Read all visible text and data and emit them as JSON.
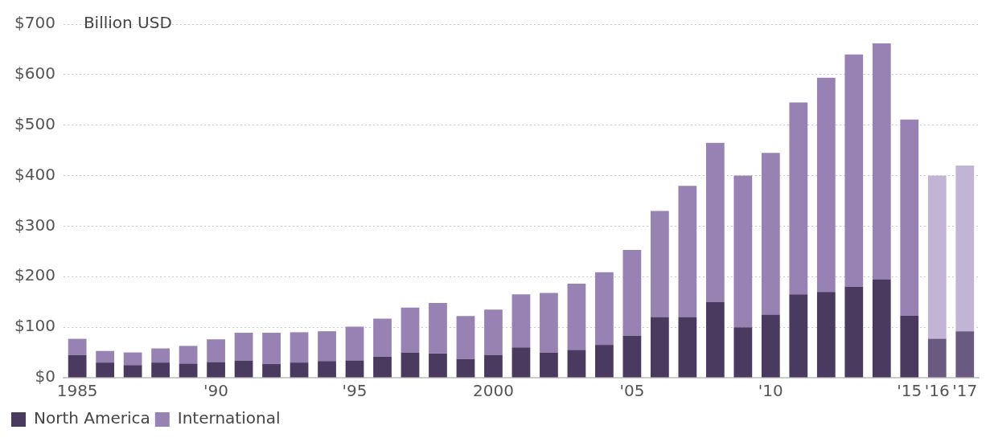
{
  "chart_data": {
    "type": "bar",
    "stacked": true,
    "ylabel": "Billion USD",
    "categories": [
      "1985",
      null,
      null,
      null,
      null,
      "'90",
      null,
      null,
      null,
      null,
      "'95",
      null,
      null,
      null,
      null,
      "2000",
      null,
      null,
      null,
      null,
      "'05",
      null,
      null,
      null,
      null,
      "'10",
      null,
      null,
      null,
      null,
      "'15",
      "'16",
      "'17"
    ],
    "series": [
      {
        "name": "North America",
        "color": "#4a3a60",
        "colors": [
          "#4a3a60",
          "#4a3a60",
          "#4a3a60",
          "#4a3a60",
          "#4a3a60",
          "#4a3a60",
          "#4a3a60",
          "#4a3a60",
          "#4a3a60",
          "#4a3a60",
          "#4a3a60",
          "#4a3a60",
          "#4a3a60",
          "#4a3a60",
          "#4a3a60",
          "#4a3a60",
          "#4a3a60",
          "#4a3a60",
          "#4a3a60",
          "#4a3a60",
          "#4a3a60",
          "#4a3a60",
          "#4a3a60",
          "#4a3a60",
          "#4a3a60",
          "#4a3a60",
          "#4a3a60",
          "#4a3a60",
          "#4a3a60",
          "#4a3a60",
          "#4a3a60",
          "#6a5a82",
          "#6a5a82"
        ],
        "values": [
          45,
          30,
          25,
          30,
          28,
          31,
          34,
          27,
          30,
          33,
          34,
          42,
          50,
          48,
          37,
          45,
          60,
          50,
          55,
          65,
          83,
          120,
          120,
          150,
          100,
          125,
          165,
          170,
          180,
          195,
          123,
          77,
          92
        ]
      },
      {
        "name": "International",
        "color": "#9882b3",
        "colors": [
          "#9882b3",
          "#9882b3",
          "#9882b3",
          "#9882b3",
          "#9882b3",
          "#9882b3",
          "#9882b3",
          "#9882b3",
          "#9882b3",
          "#9882b3",
          "#9882b3",
          "#9882b3",
          "#9882b3",
          "#9882b3",
          "#9882b3",
          "#9882b3",
          "#9882b3",
          "#9882b3",
          "#9882b3",
          "#9882b3",
          "#9882b3",
          "#9882b3",
          "#9882b3",
          "#9882b3",
          "#9882b3",
          "#9882b3",
          "#9882b3",
          "#9882b3",
          "#9882b3",
          "#9882b3",
          "#9882b3",
          "#c2b4d4",
          "#c2b4d4"
        ],
        "values": [
          32,
          23,
          25,
          28,
          35,
          45,
          55,
          62,
          60,
          59,
          67,
          75,
          89,
          100,
          85,
          90,
          105,
          118,
          131,
          144,
          170,
          210,
          260,
          315,
          300,
          320,
          380,
          424,
          460,
          467,
          388,
          323,
          328
        ]
      }
    ],
    "ylim": [
      0,
      700
    ],
    "yticks": [
      {
        "value": 0,
        "label": "$0"
      },
      {
        "value": 100,
        "label": "$100"
      },
      {
        "value": 200,
        "label": "$200"
      },
      {
        "value": 300,
        "label": "$300"
      },
      {
        "value": 400,
        "label": "$400"
      },
      {
        "value": 500,
        "label": "$500"
      },
      {
        "value": 600,
        "label": "$600"
      },
      {
        "value": 700,
        "label": "$700"
      }
    ],
    "grid": "y",
    "legend": "bottom left"
  }
}
